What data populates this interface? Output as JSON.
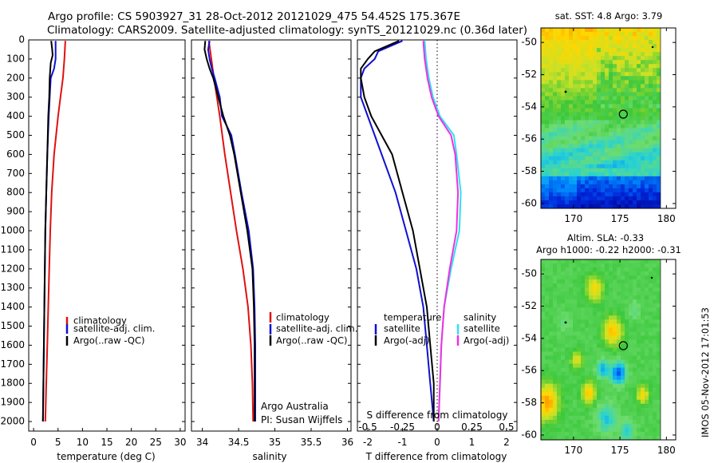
{
  "header": {
    "line1": "Argo profile: CS 5903927_31 28-Oct-2012 20121029_475 54.452S 175.367E",
    "line2": "Climatology: CARS2009. Satellite-adjusted climatology: synTS_20121029.nc (0.36d later)"
  },
  "credit": {
    "line1": "Argo Australia",
    "line2": "PI: Susan Wijffels"
  },
  "stamp": "IMOS 05-Nov-2012 17:01:53",
  "colors": {
    "climatology": "#e01010",
    "satellite": "#1010d0",
    "argo": "#000000",
    "sal_satellite": "#30e0f0",
    "sal_argo": "#f030e0"
  },
  "chart_data": [
    {
      "type": "line",
      "name": "temperature-profile",
      "xlabel": "temperature (deg C)",
      "ylabel": "",
      "xlim": [
        -1,
        31
      ],
      "ylim": [
        2050,
        0
      ],
      "xticks": [
        0,
        5,
        10,
        15,
        20,
        25,
        30
      ],
      "yticks": [
        0,
        100,
        200,
        300,
        400,
        500,
        600,
        700,
        800,
        900,
        1000,
        1100,
        1200,
        1300,
        1400,
        1500,
        1600,
        1700,
        1800,
        1900,
        2000
      ],
      "legend": [
        "climatology",
        "satellite-adj. clim.",
        "Argo(..raw -QC)"
      ],
      "series": [
        {
          "key": "clim",
          "depth": [
            5,
            100,
            200,
            300,
            400,
            500,
            600,
            800,
            1000,
            1200,
            1400,
            1600,
            1800,
            2000
          ],
          "values": [
            6.5,
            6.3,
            6.0,
            5.5,
            5.0,
            4.6,
            4.2,
            3.7,
            3.4,
            3.2,
            3.0,
            2.8,
            2.6,
            2.4
          ]
        },
        {
          "key": "sat",
          "depth": [
            5,
            50,
            100,
            150,
            200,
            300,
            400,
            600,
            800,
            1000,
            1200,
            1400,
            1600,
            1800,
            2000
          ],
          "values": [
            4.5,
            4.5,
            4.5,
            4.2,
            3.5,
            3.3,
            3.1,
            2.8,
            2.6,
            2.4,
            2.3,
            2.2,
            2.1,
            2.0,
            1.9
          ]
        },
        {
          "key": "argo",
          "depth": [
            5,
            50,
            80,
            120,
            200,
            300,
            400,
            600,
            800,
            1000,
            1200,
            1400,
            1600,
            1800,
            2000
          ],
          "values": [
            3.6,
            3.8,
            3.9,
            3.5,
            3.3,
            3.2,
            3.0,
            2.8,
            2.6,
            2.4,
            2.3,
            2.2,
            2.1,
            2.0,
            1.9
          ]
        }
      ]
    },
    {
      "type": "line",
      "name": "salinity-profile",
      "xlabel": "salinity",
      "ylabel": "",
      "xlim": [
        33.85,
        36.05
      ],
      "ylim": [
        2050,
        0
      ],
      "xticks": [
        34,
        34.5,
        35,
        35.5,
        36
      ],
      "legend": [
        "climatology",
        "satellite-adj. clim.",
        "Argo(..raw -QC)"
      ],
      "series": [
        {
          "key": "clim",
          "depth": [
            5,
            200,
            400,
            600,
            800,
            1000,
            1200,
            1400,
            1600,
            1800,
            2000
          ],
          "values": [
            34.09,
            34.16,
            34.24,
            34.31,
            34.39,
            34.47,
            34.56,
            34.63,
            34.67,
            34.69,
            34.7
          ]
        },
        {
          "key": "sat",
          "depth": [
            5,
            50,
            100,
            150,
            200,
            300,
            400,
            500,
            600,
            800,
            1000,
            1200,
            1400,
            1600,
            1800,
            2000
          ],
          "values": [
            34.1,
            34.08,
            34.1,
            34.13,
            34.17,
            34.24,
            34.27,
            34.4,
            34.45,
            34.54,
            34.64,
            34.7,
            34.72,
            34.73,
            34.73,
            34.73
          ]
        },
        {
          "key": "argo",
          "depth": [
            5,
            50,
            100,
            150,
            200,
            300,
            400,
            500,
            600,
            800,
            1000,
            1200,
            1400,
            1600,
            1800,
            2000
          ],
          "values": [
            34.04,
            34.03,
            34.06,
            34.1,
            34.15,
            34.22,
            34.29,
            34.38,
            34.44,
            34.53,
            34.62,
            34.69,
            34.71,
            34.72,
            34.72,
            34.72
          ]
        }
      ]
    },
    {
      "type": "line",
      "name": "difference-profile",
      "xlabel": "T difference from climatology",
      "xlabel2": "S difference from climatology",
      "xlim": [
        -2.3,
        2.3
      ],
      "xlim2": [
        -0.575,
        0.575
      ],
      "ylim": [
        2050,
        0
      ],
      "xticks": [
        -2,
        -1,
        0,
        1,
        2
      ],
      "xticks2": [
        "-0.5",
        "-0.25",
        "0",
        "0.25",
        "0.5"
      ],
      "legend": [
        "temperature",
        "satellite",
        "Argo(-adj)"
      ],
      "legend2": [
        "salinity",
        "satellite",
        "Argo(-adj)"
      ],
      "series": [
        {
          "key": "t_sat",
          "depth": [
            5,
            60,
            100,
            150,
            200,
            300,
            400,
            500,
            600,
            800,
            1000,
            1200,
            1400,
            1600,
            1800,
            2000
          ],
          "values": [
            -1.0,
            -1.7,
            -1.8,
            -2.1,
            -2.2,
            -2.2,
            -2.0,
            -1.8,
            -1.6,
            -1.2,
            -0.9,
            -0.6,
            -0.4,
            -0.3,
            -0.2,
            -0.1
          ]
        },
        {
          "key": "t_argo",
          "depth": [
            5,
            60,
            100,
            150,
            200,
            300,
            400,
            500,
            600,
            800,
            1000,
            1200,
            1400,
            1600,
            1800,
            2000
          ],
          "values": [
            -1.1,
            -1.8,
            -2.0,
            -2.2,
            -2.2,
            -2.1,
            -1.9,
            -1.6,
            -1.3,
            -1.0,
            -0.7,
            -0.5,
            -0.3,
            -0.2,
            -0.1,
            -0.1
          ]
        },
        {
          "key": "s_sat",
          "depth": [
            5,
            100,
            200,
            300,
            400,
            500,
            600,
            800,
            1000,
            1200,
            1400,
            1600,
            1800,
            2000
          ],
          "values": [
            -0.09,
            -0.08,
            -0.06,
            -0.03,
            0.02,
            0.12,
            0.14,
            0.17,
            0.16,
            0.1,
            0.05,
            0.03,
            0.02,
            0.01
          ]
        },
        {
          "key": "s_argo",
          "depth": [
            5,
            100,
            200,
            300,
            400,
            500,
            600,
            800,
            1000,
            1200,
            1400,
            1600,
            1800,
            2000
          ],
          "values": [
            -0.1,
            -0.09,
            -0.07,
            -0.04,
            0.01,
            0.1,
            0.13,
            0.15,
            0.14,
            0.09,
            0.05,
            0.03,
            0.02,
            0.01
          ]
        }
      ]
    },
    {
      "type": "heatmap",
      "name": "sst-map",
      "title": "sat. SST: 4.8  Argo: 3.79",
      "xlim": [
        166.5,
        181
      ],
      "ylim": [
        -60.3,
        -49.1
      ],
      "xticks": [
        170,
        175,
        180
      ],
      "yticks": [
        -50,
        -52,
        -54,
        -56,
        -58,
        -60
      ],
      "float_position": [
        175.367,
        -54.452
      ]
    },
    {
      "type": "heatmap",
      "name": "sla-map",
      "title": "Altim. SLA: -0.33",
      "subtitle": "Argo h1000: -0.22  h2000: -0.31",
      "xlim": [
        166.5,
        181
      ],
      "ylim": [
        -60.3,
        -49.1
      ],
      "xticks": [
        170,
        175,
        180
      ],
      "yticks": [
        -50,
        -52,
        -54,
        -56,
        -58,
        -60
      ],
      "float_position": [
        175.367,
        -54.452
      ]
    }
  ]
}
